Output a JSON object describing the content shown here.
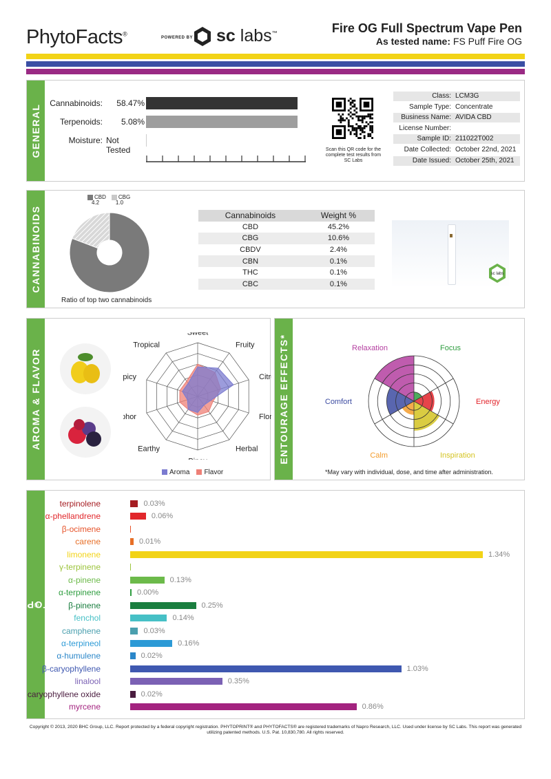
{
  "header": {
    "logo": "PhytoFacts",
    "logo_mark": "®",
    "powered_by": "POWERED BY",
    "lab_brand_bold": "sc",
    "lab_brand_light": "labs",
    "lab_brand_mark": "™",
    "product_title": "Fire OG Full Spectrum Vape Pen",
    "tested_label": "As tested name:",
    "tested_name": "FS Puff Fire OG"
  },
  "stripe_colors": [
    "#f2d316",
    "#3a4fa4",
    "#9a2a84"
  ],
  "general": {
    "tab": "GENERAL",
    "rows": [
      {
        "label": "Cannabinoids:",
        "value": "58.47%",
        "fraction": 0.95,
        "color": "#333333"
      },
      {
        "label": "Terpenoids:",
        "value": "5.08%",
        "fraction": 0.95,
        "color": "#9e9e9e"
      },
      {
        "label": "Moisture:",
        "value": "Not Tested",
        "fraction": 0,
        "color": "#cccccc"
      }
    ],
    "qr_note": "Scan this QR code for the complete test results from SC Labs",
    "info": [
      {
        "key": "Class:",
        "value": "LCM3G"
      },
      {
        "key": "Sample Type:",
        "value": "Concentrate"
      },
      {
        "key": "Business Name:",
        "value": "AVIDA CBD"
      },
      {
        "key": "License Number:",
        "value": ""
      },
      {
        "key": "Sample ID:",
        "value": "211022T002"
      },
      {
        "key": "Date Collected:",
        "value": "October 22nd, 2021"
      },
      {
        "key": "Date Issued:",
        "value": "October 25th, 2021"
      }
    ]
  },
  "cannabinoids": {
    "tab": "CANNABINOIDS",
    "legend": [
      {
        "name": "CBD",
        "value": "4.2",
        "color": "#7a7a7a"
      },
      {
        "name": "CBG",
        "value": "1.0",
        "color": "#c8c8c8"
      }
    ],
    "caption": "Ratio of top two cannabinoids",
    "table_headers": [
      "Cannabinoids",
      "Weight %"
    ],
    "table_rows": [
      [
        "CBD",
        "45.2%"
      ],
      [
        "CBG",
        "10.6%"
      ],
      [
        "CBDV",
        "2.4%"
      ],
      [
        "CBN",
        "0.1%"
      ],
      [
        "THC",
        "0.1%"
      ],
      [
        "CBC",
        "0.1%"
      ]
    ],
    "badge_text": "sc labs"
  },
  "aroma": {
    "tab": "AROMA & FLAVOR",
    "axes": [
      "Sweet",
      "Fruity",
      "Citrusy",
      "Floral",
      "Herbal",
      "Piney",
      "Earthy",
      "Camphor",
      "Spicy",
      "Tropical"
    ],
    "aroma_values": [
      0.55,
      0.65,
      0.7,
      0.25,
      0.2,
      0.3,
      0.3,
      0.2,
      0.3,
      0.3
    ],
    "flavor_values": [
      0.6,
      0.55,
      0.45,
      0.3,
      0.35,
      0.35,
      0.3,
      0.35,
      0.35,
      0.35
    ],
    "legend": [
      {
        "name": "Aroma",
        "color": "#7b7bd0"
      },
      {
        "name": "Flavor",
        "color": "#ee8077"
      }
    ]
  },
  "entourage": {
    "tab": "ENTOURAGE EFFECTS*",
    "effects": [
      {
        "name": "Focus",
        "value": 0.2,
        "color": "#2e9d3f"
      },
      {
        "name": "Energy",
        "value": 0.45,
        "color": "#e2232a"
      },
      {
        "name": "Inspiration",
        "value": 0.65,
        "color": "#d4c321"
      },
      {
        "name": "Calm",
        "value": 0.3,
        "color": "#f39c2c"
      },
      {
        "name": "Comfort",
        "value": 0.6,
        "color": "#3c4ba1"
      },
      {
        "name": "Relaxation",
        "value": 1.0,
        "color": "#b43fa0"
      }
    ],
    "note": "*May vary with individual, dose, and time after administration."
  },
  "phytoprint": {
    "tab": "PHYTOPRINT",
    "tab_mark": "®",
    "max": 1.34,
    "terpenes": [
      {
        "name": "terpinolene",
        "value": 0.03,
        "label": "0.03%",
        "color": "#a51d22"
      },
      {
        "name": "α-phellandrene",
        "value": 0.06,
        "label": "0.06%",
        "color": "#e1272b"
      },
      {
        "name": "β-ocimene",
        "value": 0.0,
        "label": "",
        "color": "#e6532a"
      },
      {
        "name": "carene",
        "value": 0.01,
        "label": "0.01%",
        "color": "#e76f27"
      },
      {
        "name": "limonene",
        "value": 1.34,
        "label": "1.34%",
        "color": "#f2d316"
      },
      {
        "name": "γ-terpinene",
        "value": 0.0,
        "label": "",
        "color": "#9cc43c"
      },
      {
        "name": "α-pinene",
        "value": 0.13,
        "label": "0.13%",
        "color": "#6cba4a"
      },
      {
        "name": "α-terpinene",
        "value": 0.0,
        "label": "0.00%",
        "color": "#2e9d3f"
      },
      {
        "name": "β-pinene",
        "value": 0.25,
        "label": "0.25%",
        "color": "#1a7e3f"
      },
      {
        "name": "fenchol",
        "value": 0.14,
        "label": "0.14%",
        "color": "#46c0c6"
      },
      {
        "name": "camphene",
        "value": 0.03,
        "label": "0.03%",
        "color": "#4a9fae"
      },
      {
        "name": "α-terpineol",
        "value": 0.16,
        "label": "0.16%",
        "color": "#2c9ad6"
      },
      {
        "name": "α-humulene",
        "value": 0.02,
        "label": "0.02%",
        "color": "#2b87c9"
      },
      {
        "name": "β-caryophyllene",
        "value": 1.03,
        "label": "1.03%",
        "color": "#3f58b0"
      },
      {
        "name": "linalool",
        "value": 0.35,
        "label": "0.35%",
        "color": "#7b61b4"
      },
      {
        "name": "caryophyllene oxide",
        "value": 0.02,
        "label": "0.02%",
        "color": "#4a1c3f"
      },
      {
        "name": "myrcene",
        "value": 0.86,
        "label": "0.86%",
        "color": "#a3237f"
      }
    ]
  },
  "footer": "Copyright © 2013, 2020 BHC Group, LLC. Report protected by a federal copyright registration. PHYTOPRINT® and PHYTOFACTS® are registered trademarks of Napro Research, LLC. Used under license by SC Labs. This report was generated utilizing patented methods. U.S. Pat. 10,830,780. All rights reserved."
}
